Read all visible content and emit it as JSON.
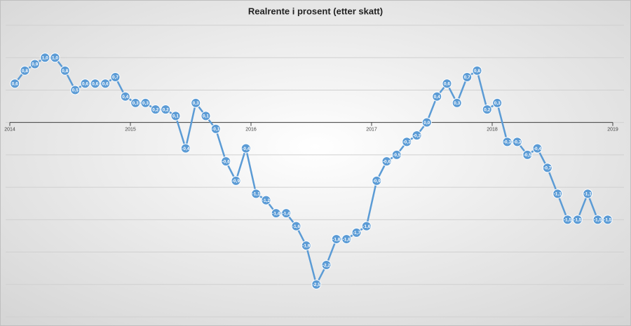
{
  "chart_data": {
    "type": "line",
    "title": "Realrente i prosent (etter skatt)",
    "x": [
      2014.042,
      2014.125,
      2014.208,
      2014.292,
      2014.375,
      2014.458,
      2014.542,
      2014.625,
      2014.708,
      2014.792,
      2014.875,
      2014.958,
      2015.042,
      2015.125,
      2015.208,
      2015.292,
      2015.375,
      2015.458,
      2015.542,
      2015.625,
      2015.708,
      2015.792,
      2015.875,
      2015.958,
      2016.042,
      2016.125,
      2016.208,
      2016.292,
      2016.375,
      2016.458,
      2016.542,
      2016.625,
      2016.708,
      2016.792,
      2016.875,
      2016.958,
      2017.042,
      2017.125,
      2017.208,
      2017.292,
      2017.375,
      2017.458,
      2017.542,
      2017.625,
      2017.708,
      2017.792,
      2017.875,
      2017.958,
      2018.042,
      2018.125,
      2018.208,
      2018.292,
      2018.375,
      2018.458,
      2018.542,
      2018.625,
      2018.708,
      2018.792,
      2018.875,
      2018.958
    ],
    "values": [
      0.6,
      0.8,
      0.9,
      1.0,
      1.0,
      0.8,
      0.5,
      0.6,
      0.6,
      0.6,
      0.7,
      0.4,
      0.3,
      0.3,
      0.2,
      0.2,
      0.1,
      -0.4,
      0.3,
      0.1,
      -0.1,
      -0.6,
      -0.9,
      -0.4,
      -1.1,
      -1.2,
      -1.4,
      -1.4,
      -1.6,
      -1.9,
      -2.5,
      -2.2,
      -1.8,
      -1.8,
      -1.7,
      -1.6,
      -0.9,
      -0.6,
      -0.5,
      -0.3,
      -0.2,
      0.0,
      0.4,
      0.6,
      0.3,
      0.7,
      0.8,
      0.2,
      0.3,
      -0.3,
      -0.3,
      -0.5,
      -0.4,
      -0.7,
      -1.1,
      -1.5,
      -1.5,
      -1.1,
      -1.5,
      -1.5
    ],
    "value_labels": [
      "0,6",
      "0,8",
      "0,9",
      "1,0",
      "1,0",
      "0,8",
      "0,5",
      "0,6",
      "0,6",
      "0,6",
      "0,7",
      "0,4",
      "0,3",
      "0,3",
      "0,2",
      "0,2",
      "0,1",
      "-0,4",
      "0,3",
      "0,1",
      "-0,1",
      "-0,6",
      "-0,9",
      "-0,4",
      "-1,1",
      "-1,2",
      "-1,4",
      "-1,4",
      "-1,6",
      "-1,9",
      "-2,5",
      "-2,2",
      "-1,8",
      "-1,8",
      "-1,7",
      "-1,6",
      "-0,9",
      "-0,6",
      "-0,5",
      "-0,3",
      "-0,2",
      "0,0",
      "0,4",
      "0,6",
      "0,3",
      "0,7",
      "0,8",
      "0,2",
      "0,3",
      "-0,3",
      "-0,3",
      "-0,5",
      "-0,4",
      "-0,7",
      "-1,1",
      "-1,5",
      "-1,5",
      "-1,1",
      "-1,5",
      "-1,5"
    ],
    "color": "#5b9bd5",
    "xlim": [
      2014,
      2019
    ],
    "xticks": [
      2014,
      2015,
      2016,
      2017,
      2018,
      2019
    ],
    "ylim": [
      -3,
      1.5
    ],
    "yticks": [
      -3,
      -2.5,
      -2,
      -1.5,
      -1,
      -0.5,
      0,
      0.5,
      1,
      1.5
    ],
    "grid": true
  }
}
